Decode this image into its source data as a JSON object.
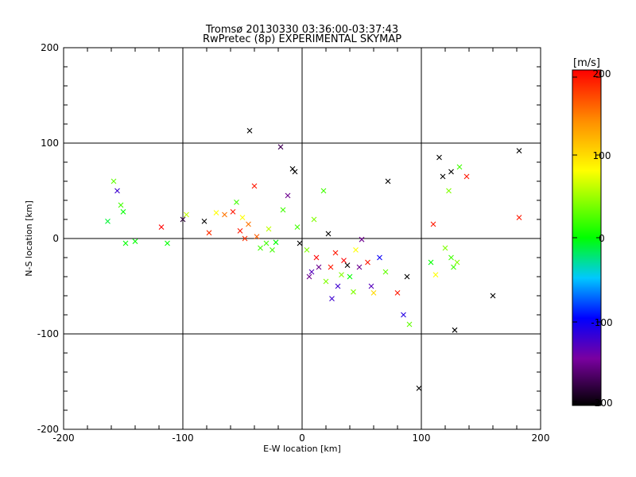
{
  "chart_data": {
    "type": "scatter",
    "title": "Tromsø 20130330 03:36:00-03:37:43",
    "subtitle": "RwPretec (8p) EXPERIMENTAL SKYMAP",
    "xlabel": "E-W location [km]",
    "ylabel": "N-S location [km]",
    "xlim": [
      -200,
      200
    ],
    "ylim": [
      -200,
      200
    ],
    "x_ticks": [
      "-200",
      "-100",
      "0",
      "100",
      "200"
    ],
    "y_ticks": [
      "-200",
      "-100",
      "0",
      "100",
      "200"
    ],
    "grid": true,
    "colorbar": {
      "label": "[m/s]",
      "range": [
        -200,
        200
      ],
      "ticks": [
        "200",
        "100",
        "0",
        "-100",
        "-200"
      ],
      "colors": [
        "#000000",
        "#7a00a0",
        "#0000ff",
        "#00c8ff",
        "#00ff00",
        "#ffff00",
        "#ff8c00",
        "#ff0000"
      ]
    },
    "crosses": [
      [
        -155,
        50,
        -120
      ],
      [
        -152,
        35,
        20
      ],
      [
        -150,
        28,
        0
      ],
      [
        -148,
        -5,
        0
      ],
      [
        -158,
        60,
        30
      ],
      [
        -163,
        18,
        -10
      ],
      [
        -140,
        -3,
        0
      ],
      [
        -118,
        12,
        200
      ],
      [
        -113,
        -5,
        0
      ],
      [
        -100,
        20,
        -180
      ],
      [
        -97,
        25,
        60
      ],
      [
        -82,
        18,
        -200
      ],
      [
        -78,
        6,
        180
      ],
      [
        -72,
        27,
        80
      ],
      [
        -65,
        25,
        150
      ],
      [
        -58,
        28,
        190
      ],
      [
        -55,
        38,
        20
      ],
      [
        -52,
        8,
        190
      ],
      [
        -50,
        22,
        80
      ],
      [
        -48,
        0,
        180
      ],
      [
        -45,
        15,
        150
      ],
      [
        -44,
        113,
        -200
      ],
      [
        -40,
        55,
        190
      ],
      [
        -38,
        2,
        160
      ],
      [
        -35,
        -10,
        20
      ],
      [
        -30,
        -5,
        20
      ],
      [
        -28,
        10,
        60
      ],
      [
        -25,
        -12,
        20
      ],
      [
        -22,
        -4,
        0
      ],
      [
        -18,
        96,
        -170
      ],
      [
        -16,
        30,
        20
      ],
      [
        -12,
        45,
        -150
      ],
      [
        -8,
        73,
        -200
      ],
      [
        -6,
        70,
        -200
      ],
      [
        -4,
        12,
        20
      ],
      [
        -2,
        -5,
        -200
      ],
      [
        4,
        -12,
        40
      ],
      [
        6,
        -40,
        -150
      ],
      [
        10,
        20,
        40
      ],
      [
        12,
        -20,
        200
      ],
      [
        14,
        -30,
        -150
      ],
      [
        18,
        50,
        20
      ],
      [
        20,
        -45,
        40
      ],
      [
        22,
        5,
        -200
      ],
      [
        24,
        -30,
        190
      ],
      [
        25,
        -63,
        -120
      ],
      [
        28,
        -15,
        190
      ],
      [
        30,
        -50,
        -120
      ],
      [
        33,
        -38,
        40
      ],
      [
        35,
        -23,
        200
      ],
      [
        38,
        -28,
        -200
      ],
      [
        40,
        -40,
        0
      ],
      [
        43,
        -56,
        40
      ],
      [
        45,
        -12,
        80
      ],
      [
        48,
        -30,
        -150
      ],
      [
        50,
        -1,
        -150
      ],
      [
        55,
        -25,
        190
      ],
      [
        58,
        -50,
        -130
      ],
      [
        60,
        -57,
        100
      ],
      [
        65,
        -20,
        -100
      ],
      [
        70,
        -35,
        30
      ],
      [
        72,
        60,
        -200
      ],
      [
        80,
        -57,
        190
      ],
      [
        85,
        -80,
        -110
      ],
      [
        88,
        -40,
        -200
      ],
      [
        90,
        -90,
        30
      ],
      [
        98,
        -157,
        -200
      ],
      [
        108,
        -25,
        0
      ],
      [
        112,
        -38,
        80
      ],
      [
        115,
        85,
        -200
      ],
      [
        118,
        65,
        -200
      ],
      [
        120,
        -10,
        40
      ],
      [
        123,
        50,
        40
      ],
      [
        125,
        70,
        -200
      ],
      [
        125,
        -20,
        20
      ],
      [
        127,
        -30,
        20
      ],
      [
        128,
        -96,
        -200
      ],
      [
        130,
        -25,
        40
      ],
      [
        132,
        75,
        20
      ],
      [
        138,
        65,
        190
      ],
      [
        160,
        -60,
        -200
      ],
      [
        182,
        22,
        190
      ],
      [
        182,
        92,
        -200
      ],
      [
        110,
        15,
        190
      ],
      [
        8,
        -35,
        -130
      ]
    ]
  }
}
